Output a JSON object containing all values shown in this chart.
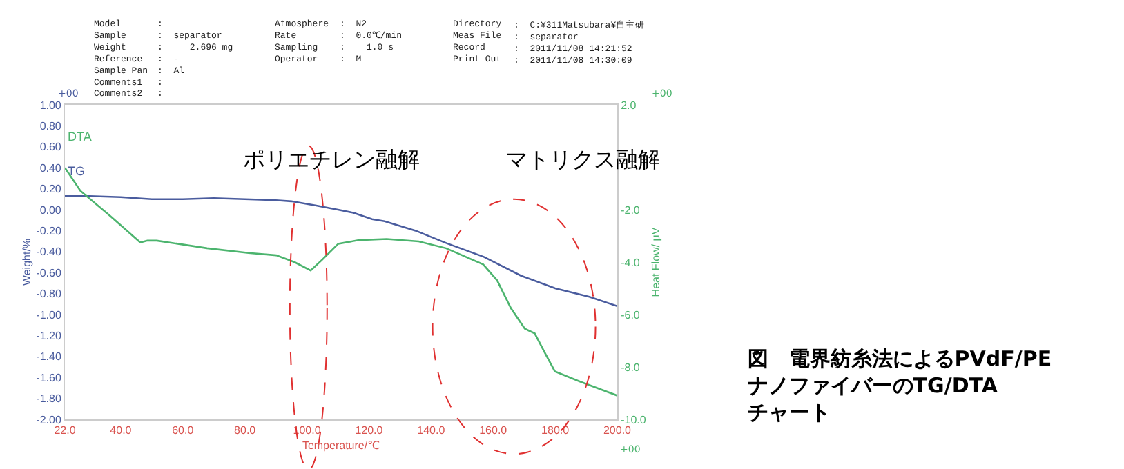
{
  "chart_data": {
    "type": "line",
    "title": "図　電界紡糸法によるPVdF/PE\nナノファイバーのTG/DTA\nチャート",
    "xlabel": "Temperature/℃",
    "ylabel": "Weight/%",
    "y2label": "Heat Flow/ μV",
    "annotations": [
      "Model\nSample\nWeight\nReference\nSample Pan\nComments1\nComments2",
      "Atmosphere\nRate\nSampling\nOperator",
      ":  N2\n:  0.0℃/min\n:    1.0 s\n:  M",
      "Directory\nMeas File\nRecord\nPrint Out",
      ":  C:¥311Matsubara¥自主研\n:  separator\n:  2011/11/08 14:21:52\n:  2011/11/08 14:30:09",
      ":\n:  separator\n:     2.696 mg\n:  -\n:  Al\n:\n:",
      "+00",
      "+00",
      "+00",
      "ポリエチレン融解",
      "マトリクス融解"
    ],
    "series": [
      {
        "name": "TG",
        "color": "#4a5c9e",
        "x": [
          22,
          30,
          40,
          50,
          60,
          70,
          80,
          90,
          95,
          103,
          110,
          115,
          121,
          125,
          135,
          145,
          157,
          169,
          180,
          191,
          200
        ],
        "values": [
          0.13,
          0.13,
          0.12,
          0.1,
          0.1,
          0.11,
          0.1,
          0.09,
          0.08,
          0.04,
          0.0,
          -0.03,
          -0.09,
          -0.11,
          -0.2,
          -0.32,
          -0.45,
          -0.63,
          -0.75,
          -0.83,
          -0.92
        ]
      },
      {
        "name": "DTA",
        "color": "#4cb46e",
        "axis": "y2",
        "x": [
          22,
          27,
          36.7,
          46.3,
          48.6,
          51.6,
          67.8,
          81.2,
          90.1,
          96,
          101.2,
          104.9,
          110.1,
          116.8,
          125.7,
          136,
          144.8,
          156.8,
          161.3,
          165.7,
          170.2,
          173.4,
          176.9,
          179.9,
          188,
          200
        ],
        "values": [
          -0.4,
          -1.28,
          -2.25,
          -3.25,
          -3.18,
          -3.18,
          -3.47,
          -3.65,
          -3.74,
          -4.0,
          -4.32,
          -3.91,
          -3.3,
          -3.16,
          -3.12,
          -3.21,
          -3.47,
          -4.09,
          -4.7,
          -5.75,
          -6.54,
          -6.72,
          -7.51,
          -8.17,
          -8.56,
          -9.09
        ]
      }
    ],
    "xlim": [
      22,
      200
    ],
    "xticks": [
      {
        "value": 22,
        "label": "22.0"
      },
      {
        "value": 40,
        "label": "40.0"
      },
      {
        "value": 60,
        "label": "60.0"
      },
      {
        "value": 80,
        "label": "80.0"
      },
      {
        "value": 100,
        "label": "100.0"
      },
      {
        "value": 120,
        "label": "120.0"
      },
      {
        "value": 140,
        "label": "140.0"
      },
      {
        "value": 160,
        "label": "160.0"
      },
      {
        "value": 180,
        "label": "180.0"
      },
      {
        "value": 200,
        "label": "200.0"
      }
    ],
    "ylim": [
      -2,
      1
    ],
    "yticks": [
      {
        "value": 1,
        "label": "1.00"
      },
      {
        "value": 0.8,
        "label": "0.80"
      },
      {
        "value": 0.6,
        "label": "0.60"
      },
      {
        "value": 0.4,
        "label": "0.40"
      },
      {
        "value": 0.2,
        "label": "0.20"
      },
      {
        "value": 0,
        "label": "0.00"
      },
      {
        "value": -0.2,
        "label": "-0.20"
      },
      {
        "value": -0.4,
        "label": "-0.40"
      },
      {
        "value": -0.6,
        "label": "-0.60"
      },
      {
        "value": -0.8,
        "label": "-0.80"
      },
      {
        "value": -1,
        "label": "-1.00"
      },
      {
        "value": -1.2,
        "label": "-1.20"
      },
      {
        "value": -1.4,
        "label": "-1.40"
      },
      {
        "value": -1.6,
        "label": "-1.60"
      },
      {
        "value": -1.8,
        "label": "-1.80"
      },
      {
        "value": -2,
        "label": "-2.00"
      }
    ],
    "y2lim": [
      -10,
      2
    ],
    "y2ticks": [
      {
        "value": 2,
        "label": "2.0"
      },
      {
        "value": -2,
        "label": "-2.0"
      },
      {
        "value": -4,
        "label": "-4.0"
      },
      {
        "value": -6,
        "label": "-6.0"
      },
      {
        "value": -8,
        "label": "-8.0"
      },
      {
        "value": -10,
        "label": "-10.0"
      }
    ],
    "grid": false,
    "legend": false,
    "line_style": "solid",
    "marker": "none"
  }
}
